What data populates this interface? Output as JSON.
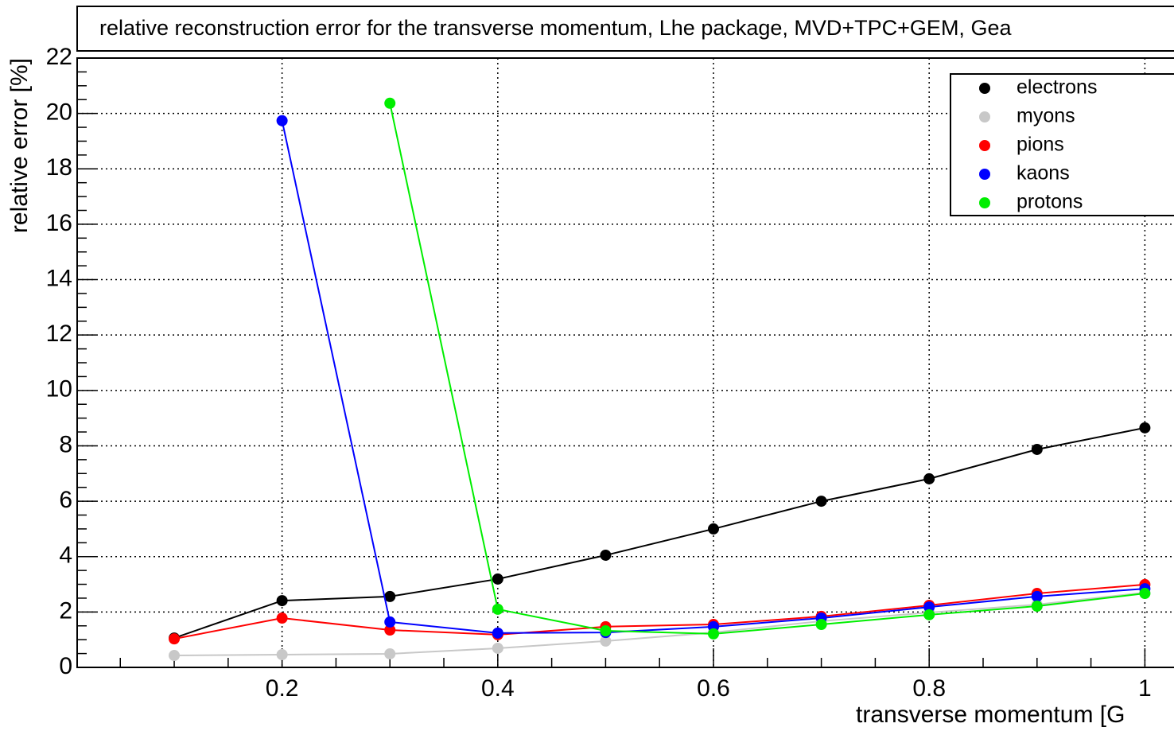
{
  "chart_data": {
    "type": "line",
    "title": "relative reconstruction error for the transverse momentum, Lhe package, MVD+TPC+GEM, Gea",
    "xlabel": "transverse momentum [G",
    "ylabel": "relative error [%]",
    "x": [
      0.1,
      0.2,
      0.3,
      0.4,
      0.5,
      0.6,
      0.7,
      0.8,
      0.9,
      1.0
    ],
    "series": [
      {
        "name": "electrons",
        "color": "#000000",
        "values": [
          1.06,
          2.41,
          2.56,
          3.19,
          4.05,
          5.0,
          6.0,
          6.81,
          7.87,
          8.65
        ]
      },
      {
        "name": "myons",
        "color": "#c8c8c8",
        "values": [
          0.43,
          0.46,
          0.49,
          0.69,
          0.95,
          1.26,
          1.67,
          1.98,
          2.27,
          2.7
        ]
      },
      {
        "name": "pions",
        "color": "#ff0000",
        "values": [
          1.03,
          1.78,
          1.35,
          1.18,
          1.47,
          1.55,
          1.84,
          2.24,
          2.67,
          2.99
        ]
      },
      {
        "name": "kaons",
        "color": "#0000ff",
        "values": [
          null,
          19.74,
          1.64,
          1.24,
          1.26,
          1.47,
          1.78,
          2.18,
          2.56,
          2.84
        ]
      },
      {
        "name": "protons",
        "color": "#00ee00",
        "values": [
          null,
          null,
          20.37,
          2.1,
          1.32,
          1.21,
          1.55,
          1.9,
          2.21,
          2.67
        ]
      }
    ],
    "xlim": [
      0.01,
      1.027
    ],
    "xticks": [
      0.2,
      0.4,
      0.6,
      0.8,
      1
    ],
    "ylim": [
      0,
      22
    ],
    "yticks": [
      0,
      2,
      4,
      6,
      8,
      10,
      12,
      14,
      16,
      18,
      20,
      22
    ],
    "grid": true,
    "legend": "top-right"
  }
}
